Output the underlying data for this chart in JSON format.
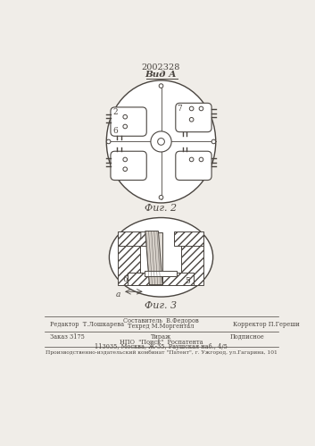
{
  "title": "2002328",
  "fig2_label": "Фиг. 2",
  "fig3_label": "Фиг. 3",
  "view_label": "Вид А",
  "bg_color": "#f0ede8",
  "line_color": "#4a4540",
  "footer_editor": "Редактор  Т.Лошкарева",
  "footer_compiler": "Составитель  В.Федоров",
  "footer_tech": "Техред М.Моргентал",
  "footer_corrector": "Корректор П.Гереши",
  "footer_order": "Заказ 3175",
  "footer_tirazh": "Тираж",
  "footer_podpisnoe": "Подписное",
  "footer_npo": "НПО  \"Поиск\"  Роспатента",
  "footer_address": "113035, Москва, Ж-35, Раушская наб., 4/5",
  "footer_bottom": "Производственно-издательский комбинат \"Патент\", г. Ужгород, ул.Гагарина, 101"
}
